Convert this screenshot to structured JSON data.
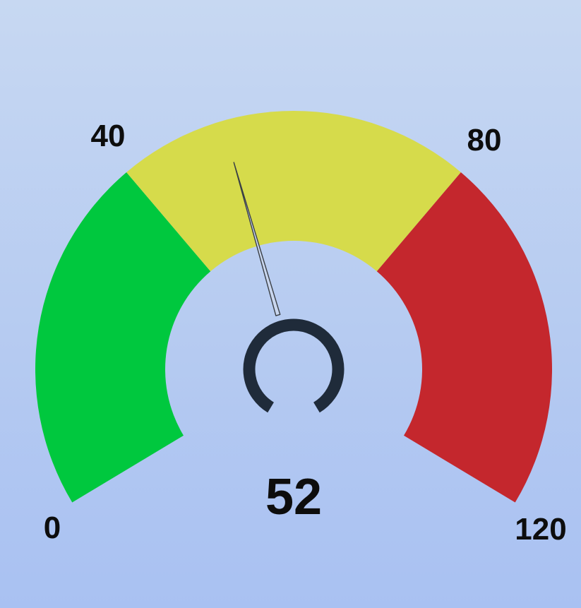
{
  "chart_data": {
    "type": "gauge",
    "value": 52,
    "value_label": "52",
    "min": 0,
    "max": 120,
    "bands": [
      {
        "from": 0,
        "to": 40,
        "color": "#00c83e"
      },
      {
        "from": 40,
        "to": 80,
        "color": "#d6db4b"
      },
      {
        "from": 80,
        "to": 120,
        "color": "#c4272d"
      }
    ],
    "tick_labels": [
      {
        "value": 0,
        "text": "0"
      },
      {
        "value": 40,
        "text": "40"
      },
      {
        "value": 80,
        "text": "80"
      },
      {
        "value": 120,
        "text": "120"
      }
    ],
    "colors": {
      "needle": "#3a3f45",
      "hub": "#1f2b3a"
    }
  }
}
